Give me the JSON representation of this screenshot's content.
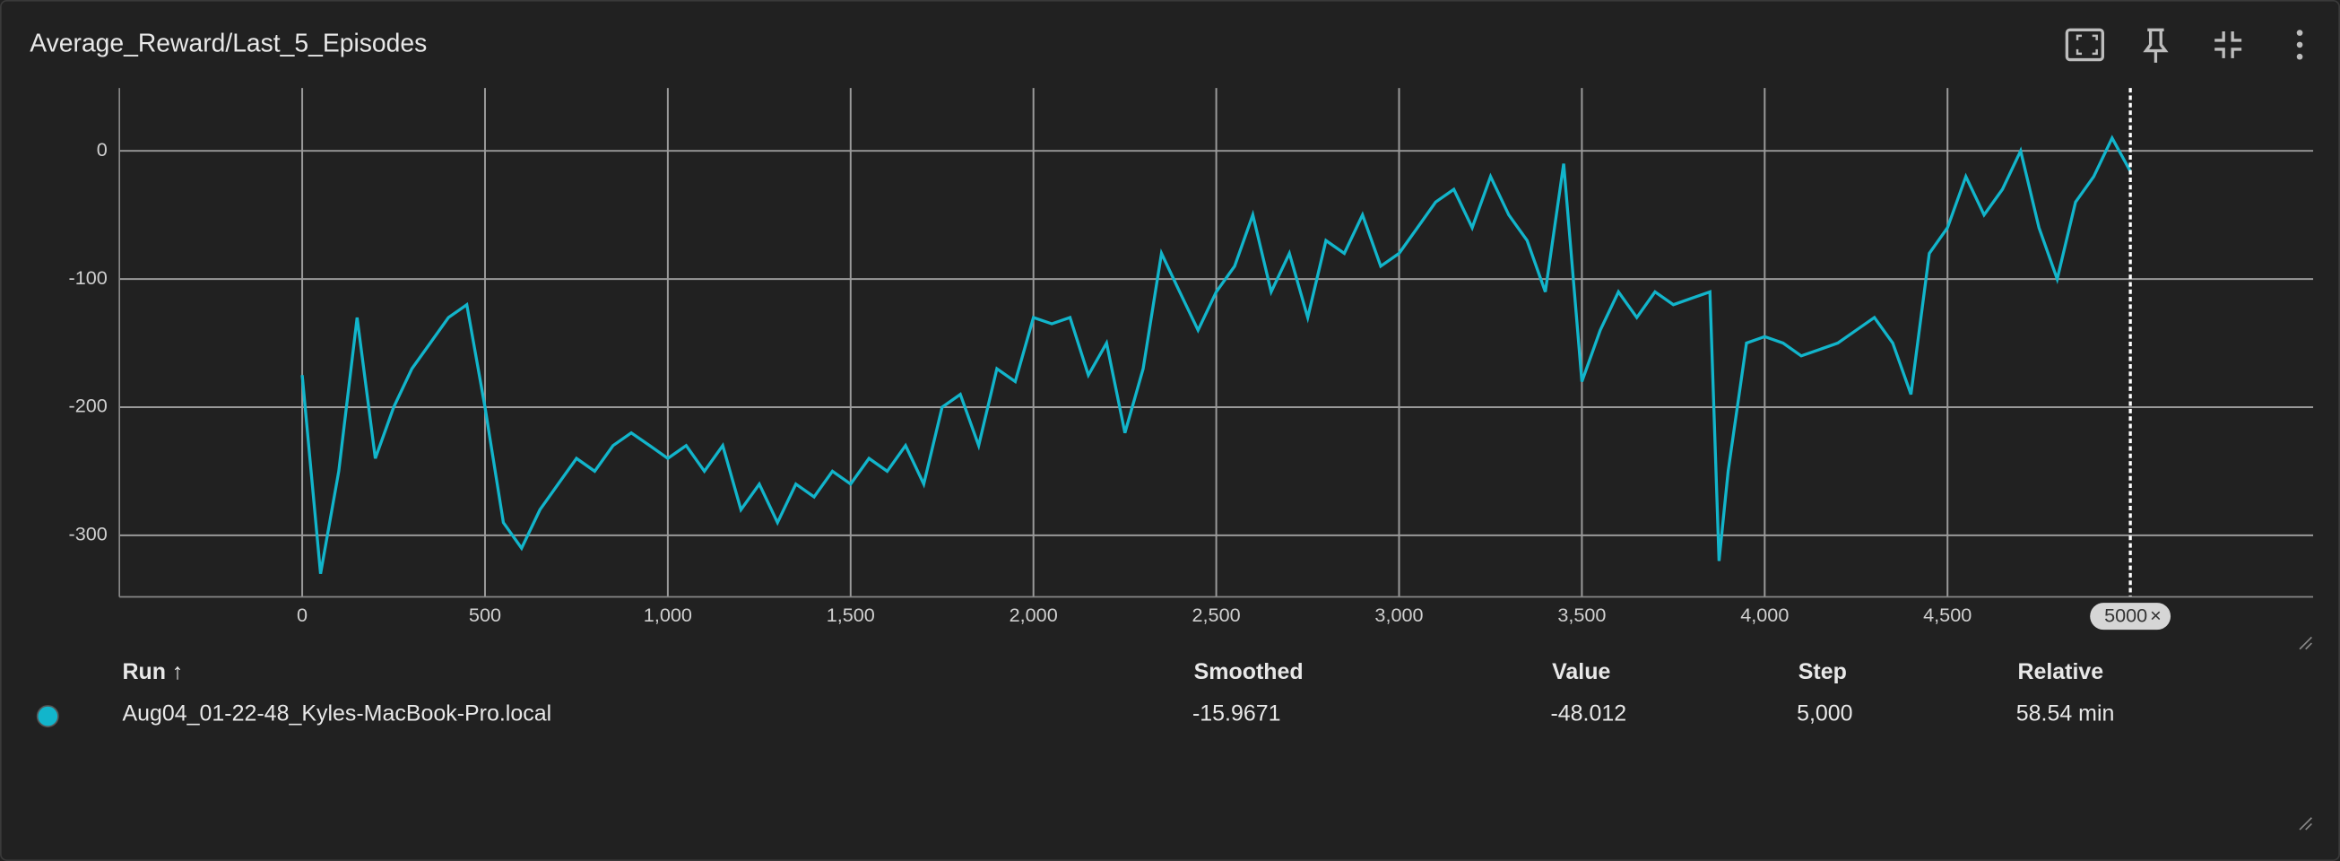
{
  "chart_data": {
    "type": "line",
    "title": "Average_Reward/Last_5_Episodes",
    "x": [
      0,
      50,
      100,
      150,
      200,
      250,
      300,
      350,
      400,
      450,
      500,
      550,
      600,
      650,
      700,
      750,
      800,
      850,
      900,
      950,
      1000,
      1050,
      1100,
      1150,
      1200,
      1250,
      1300,
      1350,
      1400,
      1450,
      1500,
      1550,
      1600,
      1650,
      1700,
      1750,
      1800,
      1850,
      1900,
      1950,
      2000,
      2050,
      2100,
      2150,
      2200,
      2250,
      2300,
      2350,
      2400,
      2450,
      2500,
      2550,
      2600,
      2650,
      2700,
      2750,
      2800,
      2850,
      2900,
      2950,
      3000,
      3050,
      3100,
      3150,
      3200,
      3250,
      3300,
      3350,
      3400,
      3450,
      3500,
      3550,
      3600,
      3650,
      3700,
      3750,
      3800,
      3850,
      3875,
      3900,
      3950,
      4000,
      4050,
      4100,
      4150,
      4200,
      4250,
      4300,
      4350,
      4400,
      4450,
      4500,
      4550,
      4600,
      4650,
      4700,
      4750,
      4800,
      4850,
      4900,
      4950,
      5000
    ],
    "series": [
      {
        "name": "Aug04_01-22-48_Kyles-MacBook-Pro.local",
        "color": "#12b5cb",
        "values": [
          -175,
          -330,
          -250,
          -130,
          -240,
          -200,
          -170,
          -150,
          -130,
          -120,
          -200,
          -290,
          -310,
          -280,
          -260,
          -240,
          -250,
          -230,
          -220,
          -230,
          -240,
          -230,
          -250,
          -230,
          -280,
          -260,
          -290,
          -260,
          -270,
          -250,
          -260,
          -240,
          -250,
          -230,
          -260,
          -200,
          -190,
          -230,
          -170,
          -180,
          -130,
          -135,
          -130,
          -175,
          -150,
          -220,
          -170,
          -80,
          -110,
          -140,
          -110,
          -90,
          -50,
          -110,
          -80,
          -130,
          -70,
          -80,
          -50,
          -90,
          -80,
          -60,
          -40,
          -30,
          -60,
          -20,
          -50,
          -70,
          -110,
          -10,
          -180,
          -140,
          -110,
          -130,
          -110,
          -120,
          -115,
          -110,
          -320,
          -250,
          -150,
          -145,
          -150,
          -160,
          -155,
          -150,
          -140,
          -130,
          -150,
          -190,
          -80,
          -60,
          -20,
          -50,
          -30,
          0,
          -60,
          -100,
          -40,
          -20,
          10,
          -16
        ]
      }
    ],
    "xlim": [
      -500,
      5500
    ],
    "ylim": [
      -348,
      49
    ],
    "xticks": [
      0,
      500,
      {
        "value": 1000,
        "label": "1,000"
      },
      {
        "value": 1500,
        "label": "1,500"
      },
      {
        "value": 2000,
        "label": "2,000"
      },
      {
        "value": 2500,
        "label": "2,500"
      },
      {
        "value": 3000,
        "label": "3,000"
      },
      {
        "value": 3500,
        "label": "3,500"
      },
      {
        "value": 4000,
        "label": "4,000"
      },
      {
        "value": 4500,
        "label": "4,500"
      }
    ],
    "yticks": [
      0,
      -100,
      -200,
      -300
    ],
    "grid": true,
    "cursor_step": 5000
  },
  "table": {
    "headers": [
      "Run ↑",
      "Smoothed",
      "Value",
      "Step",
      "Relative"
    ],
    "rows": [
      [
        "-15.9671",
        "-48.012",
        "5,000",
        "58.54 min"
      ]
    ]
  }
}
